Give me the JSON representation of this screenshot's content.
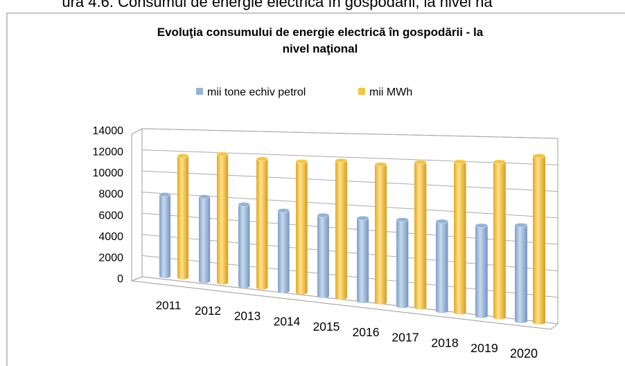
{
  "caption": "ura 4.6. Consumul de energie electrică în gospodării, la nivel na",
  "chart_data": {
    "type": "bar3d",
    "title": "Evoluţia consumului de energie electrică în gospodării - la nivel naţional",
    "categories": [
      "2011",
      "2012",
      "2013",
      "2014",
      "2015",
      "2016",
      "2017",
      "2018",
      "2019",
      "2020"
    ],
    "series": [
      {
        "name": "mii tone echiv petrol",
        "color": "#95b3d7",
        "values": [
          7700,
          7750,
          7300,
          7000,
          6850,
          6850,
          6950,
          7050,
          6950,
          7200
        ]
      },
      {
        "name": "mii MWh",
        "color": "#f5c542",
        "values": [
          11500,
          11800,
          11500,
          11400,
          11600,
          11400,
          11700,
          11850,
          11950,
          12500
        ]
      }
    ],
    "ylim": [
      0,
      14000
    ],
    "yticks": [
      0,
      2000,
      4000,
      6000,
      8000,
      10000,
      12000,
      14000
    ],
    "grid": true,
    "legend": "top"
  }
}
